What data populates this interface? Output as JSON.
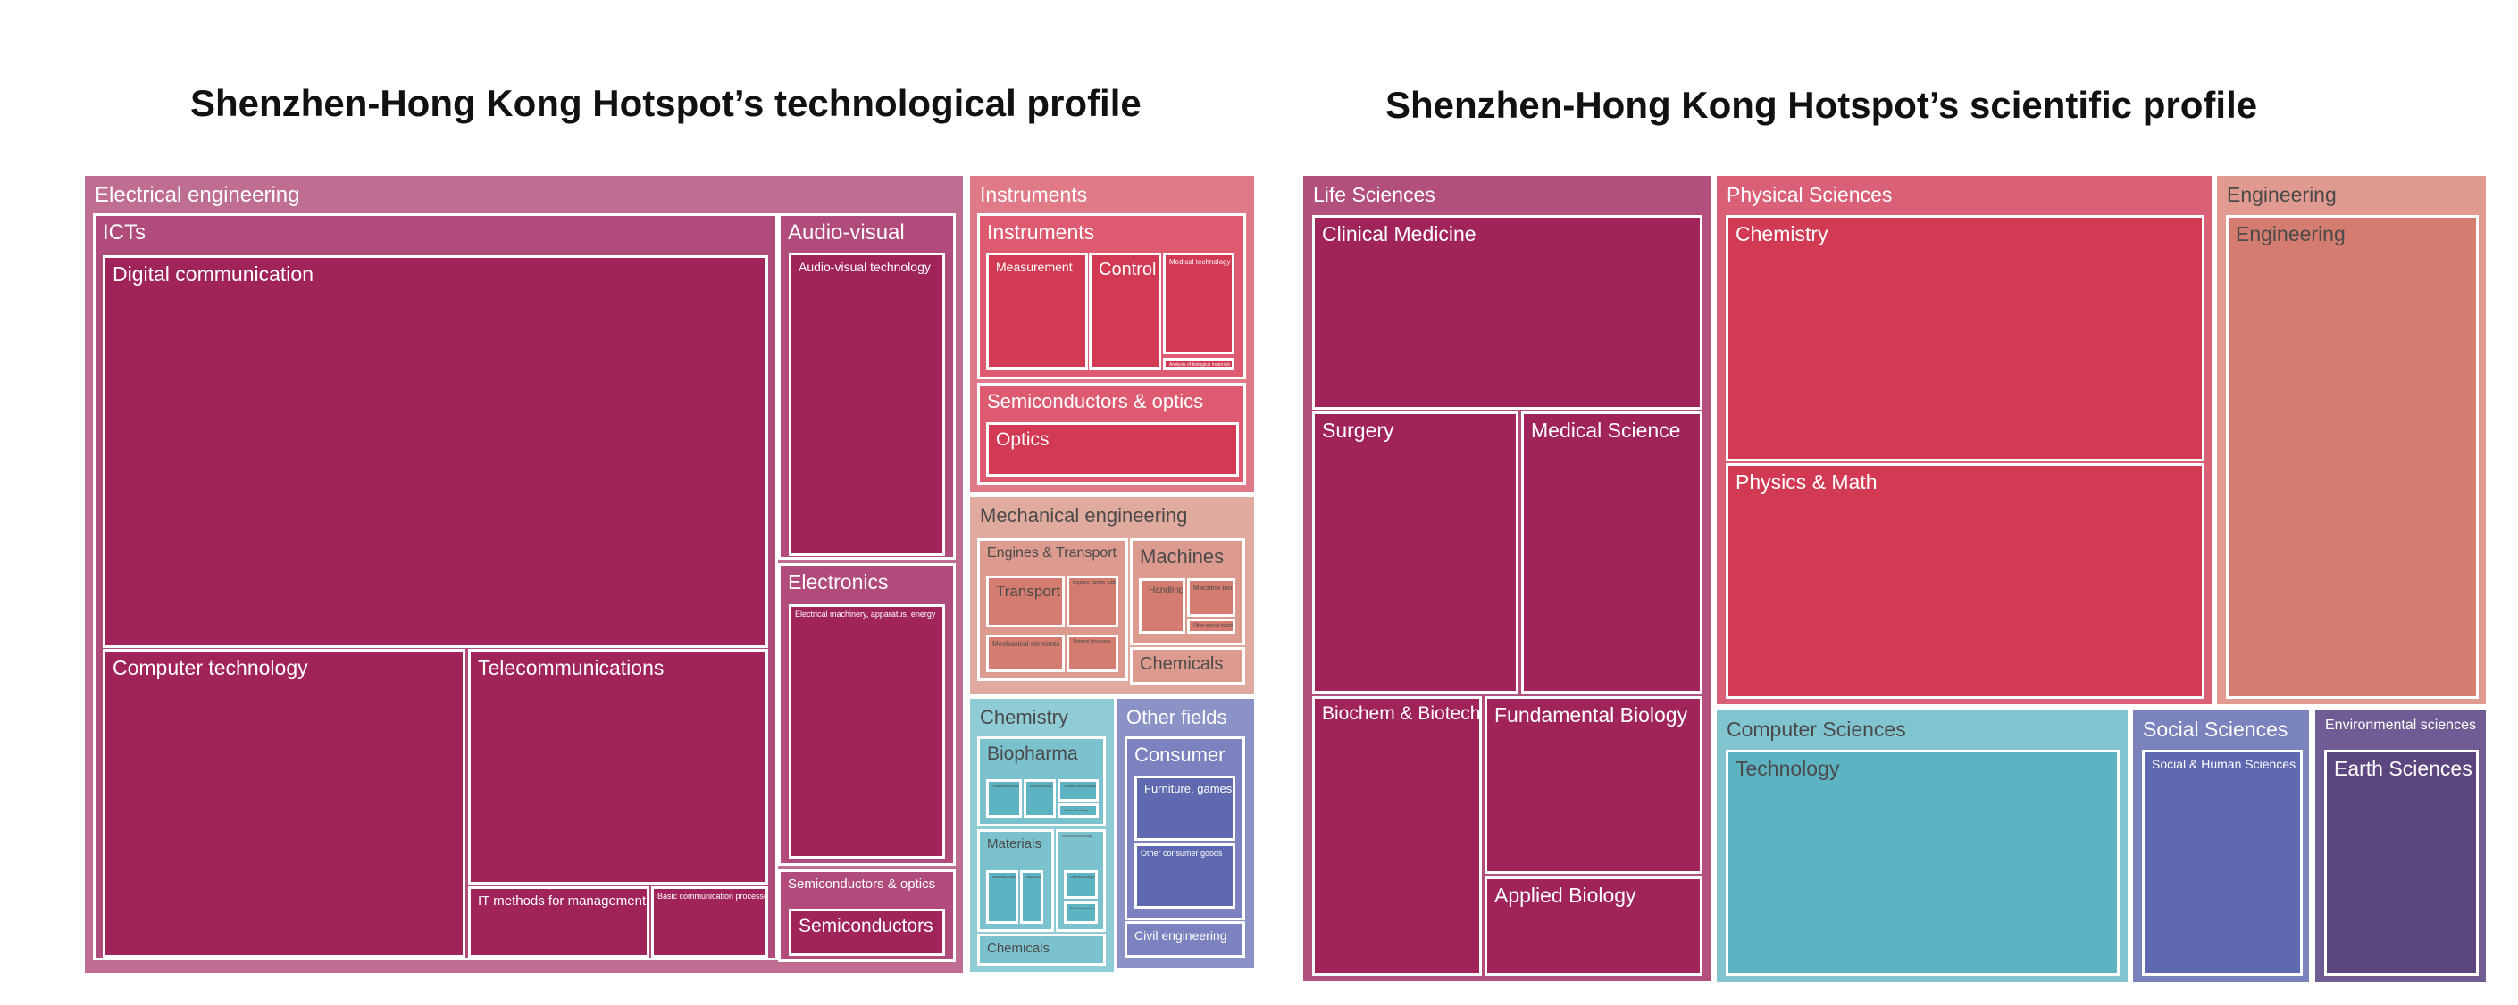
{
  "titles": {
    "left": "Shenzhen-Hong Kong Hotspot’s technological profile",
    "right": "Shenzhen-Hong Kong Hotspot’s scientific profile"
  },
  "chart_data": [
    {
      "type": "treemap",
      "title": "Shenzhen-Hong Kong Hotspot’s technological profile",
      "tree": [
        {
          "label": "Electrical engineering",
          "children": [
            {
              "label": "ICTs",
              "children": [
                {
                  "label": "Digital communication"
                },
                {
                  "label": "Computer technology"
                },
                {
                  "label": "Telecommunications"
                },
                {
                  "label": "IT methods for management"
                },
                {
                  "label": "Basic communication processes"
                }
              ]
            },
            {
              "label": "Audio-visual",
              "children": [
                {
                  "label": "Audio-visual technology"
                }
              ]
            },
            {
              "label": "Electronics",
              "children": [
                {
                  "label": "Electrical machinery, apparatus, energy"
                }
              ]
            },
            {
              "label": "Semiconductors & optics",
              "children": [
                {
                  "label": "Semiconductors"
                }
              ]
            }
          ]
        },
        {
          "label": "Instruments",
          "children": [
            {
              "label": "Instruments",
              "children": [
                {
                  "label": "Measurement"
                },
                {
                  "label": "Control"
                },
                {
                  "label": "Medical technology"
                },
                {
                  "label": "Analysis of biological materials"
                }
              ]
            },
            {
              "label": "Semiconductors & optics",
              "children": [
                {
                  "label": "Optics"
                }
              ]
            }
          ]
        },
        {
          "label": "Mechanical engineering",
          "children": [
            {
              "label": "Engines & Transport",
              "children": [
                {
                  "label": "Transport"
                },
                {
                  "label": "Engines, pumps, turbines"
                },
                {
                  "label": "Mechanical elements"
                },
                {
                  "label": "Thermal processes"
                }
              ]
            },
            {
              "label": "Machines",
              "children": [
                {
                  "label": "Handling"
                },
                {
                  "label": "Machine tools"
                },
                {
                  "label": "Other special machines"
                }
              ]
            },
            {
              "label": "Chemicals"
            }
          ]
        },
        {
          "label": "Chemistry",
          "children": [
            {
              "label": "Biopharma",
              "children": [
                {
                  "label": "Pharmaceuticals"
                },
                {
                  "label": "Biotechnology"
                },
                {
                  "label": "Organic fine chemistry"
                },
                {
                  "label": "Food chemistry"
                }
              ]
            },
            {
              "label": "Materials",
              "children": [
                {
                  "label": "Materials, metallurgy"
                },
                {
                  "label": "Macromolecular chemistry"
                },
                {
                  "label": "Surface technology"
                },
                {
                  "label": "Chemical engineering"
                },
                {
                  "label": "Environmental technology"
                }
              ]
            },
            {
              "label": "Chemicals"
            }
          ]
        },
        {
          "label": "Other fields",
          "children": [
            {
              "label": "Consumer",
              "children": [
                {
                  "label": "Furniture, games"
                },
                {
                  "label": "Other consumer goods"
                }
              ]
            },
            {
              "label": "Civil engineering"
            }
          ]
        }
      ]
    },
    {
      "type": "treemap",
      "title": "Shenzhen-Hong Kong Hotspot’s scientific profile",
      "tree": [
        {
          "label": "Life Sciences",
          "children": [
            {
              "label": "Clinical Medicine"
            },
            {
              "label": "Surgery"
            },
            {
              "label": "Medical Science"
            },
            {
              "label": "Biochem & Biotech"
            },
            {
              "label": "Fundamental Biology"
            },
            {
              "label": "Applied Biology"
            }
          ]
        },
        {
          "label": "Physical Sciences",
          "children": [
            {
              "label": "Chemistry"
            },
            {
              "label": "Physics & Math"
            }
          ]
        },
        {
          "label": "Engineering",
          "children": [
            {
              "label": "Engineering"
            }
          ]
        },
        {
          "label": "Computer Sciences",
          "children": [
            {
              "label": "Technology"
            }
          ]
        },
        {
          "label": "Social Sciences",
          "children": [
            {
              "label": "Social & Human Sciences"
            }
          ]
        },
        {
          "label": "Environmental sciences",
          "children": [
            {
              "label": "Earth Sciences"
            }
          ]
        }
      ]
    }
  ],
  "labels": {
    "elec": "Electrical engineering",
    "icts": "ICTs",
    "digcom": "Digital communication",
    "comptech": "Computer technology",
    "telecom": "Telecommunications",
    "itmgmt": "IT methods for management",
    "basiccomm": "Basic communication processes",
    "av": "Audio-visual",
    "avtech": "Audio-visual technology",
    "electronics": "Electronics",
    "elecmach": "Electrical machinery, apparatus, energy",
    "semiopt1": "Semiconductors & optics",
    "semis": "Semiconductors",
    "instr": "Instruments",
    "instr2": "Instruments",
    "measure": "Measurement",
    "control": "Control",
    "medtech": "Medical technology",
    "bioanalysis": "Analysis of biological materials",
    "semiopt2": "Semiconductors & optics",
    "optics": "Optics",
    "mecheng": "Mechanical engineering",
    "engtrans": "Engines & Transport",
    "transport": "Transport",
    "engines": "Engines, pumps, turbines",
    "mechel": "Mechanical elements",
    "thermal": "Thermal processes",
    "machines": "Machines",
    "handling": "Handling",
    "machtools": "Machine tools",
    "othermach": "Other special machines",
    "chem_me": "Chemicals",
    "chemistry": "Chemistry",
    "biopharma": "Biopharma",
    "pharma": "Pharmaceuticals",
    "biotech": "Biotechnology",
    "organic": "Organic fine chemistry",
    "food": "Food chemistry",
    "materials": "Materials",
    "metallurgy": "Materials, metallurgy",
    "macromol": "Macromolecular chemistry",
    "surface": "Surface technology",
    "chemeng": "Chemical engineering",
    "envtech": "Environmental technology",
    "chem_ch": "Chemicals",
    "otherfields": "Other fields",
    "consumer": "Consumer",
    "furniture": "Furniture, games",
    "otherconsumer": "Other consumer goods",
    "civil": "Civil engineering",
    "lifesci": "Life Sciences",
    "clinmed": "Clinical Medicine",
    "surgery": "Surgery",
    "medsci": "Medical Science",
    "biochem": "Biochem & Biotech",
    "fundbio": "Fundamental Biology",
    "appbio": "Applied Biology",
    "physsci": "Physical Sciences",
    "chem_s": "Chemistry",
    "physmath": "Physics & Math",
    "eng_p": "Engineering",
    "eng_c": "Engineering",
    "compsci": "Computer Sciences",
    "technology": "Technology",
    "socsci": "Social Sciences",
    "socsci_c": "Social & Human Sciences",
    "envsci": "Environmental sciences",
    "earthsci": "Earth Sciences"
  },
  "colors": {
    "elec_bg": "#bf6e92",
    "icts_bg": "#b04b7c",
    "leaf_elec": "#a0245a",
    "instr_bg": "#e07a88",
    "instr2_bg": "#dd5a70",
    "leaf_instr": "#d13a52",
    "mech_bg": "#e0aa9f",
    "mech2_bg": "#dd9a8f",
    "leaf_mech": "#d47c6f",
    "chem_bg": "#90ccd6",
    "chem2_bg": "#7cc2ce",
    "leaf_chem": "#5db3c2",
    "other_bg": "#8b93c6",
    "other2_bg": "#7b82bf",
    "leaf_other": "#5e69b0",
    "life_bg": "#b34f7c",
    "leaf_life": "#a0245a",
    "phys_bg": "#d96076",
    "leaf_phys": "#d13a52",
    "eng_bg": "#e09a8f",
    "leaf_eng": "#d47c6f",
    "comp_bg": "#80c4cf",
    "leaf_comp": "#5db3c2",
    "soc_bg": "#7b83bf",
    "leaf_soc": "#5e69b0",
    "env_bg": "#6f5c94",
    "leaf_env": "#5c4680"
  }
}
